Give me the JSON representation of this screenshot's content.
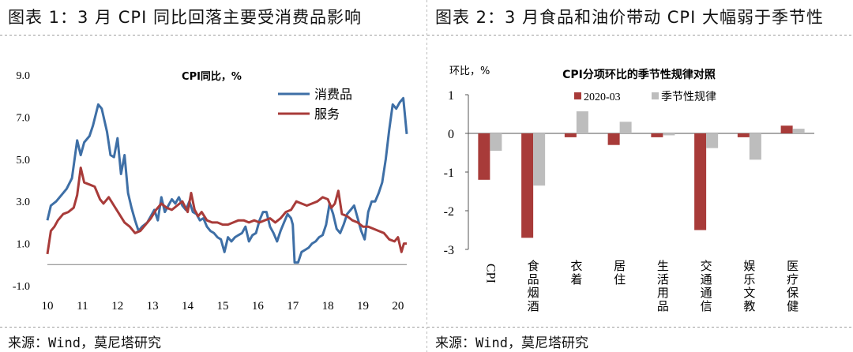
{
  "left": {
    "title": "图表 1：3 月 CPI 同比回落主要受消费品影响",
    "source": "来源：Wind，莫尼塔研究"
  },
  "right": {
    "title": "图表 2：3 月食品和油价带动 CPI 大幅弱于季节性",
    "source": "来源：Wind，莫尼塔研究"
  },
  "colors": {
    "goods": "#3e6fa6",
    "services": "#a83b39",
    "y2020": "#a83b39",
    "seasonal": "#bdbdbd"
  },
  "chart_data": [
    {
      "type": "line",
      "title": "CPI同比，%",
      "ylim": [
        -1.0,
        9.0
      ],
      "yticks": [
        "9.0",
        "7.0",
        "5.0",
        "3.0",
        "1.0",
        "-1.0"
      ],
      "ytick_values": [
        9,
        7,
        5,
        3,
        1,
        -1
      ],
      "x_range": [
        2010,
        2020.25
      ],
      "xticks": [
        "10",
        "11",
        "12",
        "13",
        "14",
        "15",
        "16",
        "17",
        "18",
        "19",
        "20"
      ],
      "xtick_values": [
        2010,
        2011,
        2012,
        2013,
        2014,
        2015,
        2016,
        2017,
        2018,
        2019,
        2020
      ],
      "legend_position": "top-right",
      "series": [
        {
          "name": "消费品",
          "color_key": "goods",
          "points": [
            [
              2010.0,
              2.1
            ],
            [
              2010.1,
              2.8
            ],
            [
              2010.25,
              3.0
            ],
            [
              2010.4,
              3.3
            ],
            [
              2010.55,
              3.6
            ],
            [
              2010.7,
              4.1
            ],
            [
              2010.85,
              5.9
            ],
            [
              2010.95,
              5.2
            ],
            [
              2011.05,
              5.8
            ],
            [
              2011.2,
              6.1
            ],
            [
              2011.3,
              6.6
            ],
            [
              2011.45,
              7.6
            ],
            [
              2011.55,
              7.4
            ],
            [
              2011.7,
              6.3
            ],
            [
              2011.8,
              5.2
            ],
            [
              2011.9,
              5.1
            ],
            [
              2012.0,
              6.0
            ],
            [
              2012.1,
              4.3
            ],
            [
              2012.2,
              5.2
            ],
            [
              2012.3,
              3.4
            ],
            [
              2012.4,
              2.7
            ],
            [
              2012.5,
              2.1
            ],
            [
              2012.6,
              1.6
            ],
            [
              2012.7,
              1.8
            ],
            [
              2012.85,
              2.0
            ],
            [
              2012.95,
              2.3
            ],
            [
              2013.05,
              2.6
            ],
            [
              2013.15,
              2.1
            ],
            [
              2013.25,
              3.2
            ],
            [
              2013.35,
              2.5
            ],
            [
              2013.45,
              2.8
            ],
            [
              2013.55,
              3.1
            ],
            [
              2013.65,
              2.9
            ],
            [
              2013.75,
              3.2
            ],
            [
              2013.85,
              2.8
            ],
            [
              2013.95,
              2.6
            ],
            [
              2014.05,
              3.0
            ],
            [
              2014.15,
              2.5
            ],
            [
              2014.25,
              2.4
            ],
            [
              2014.35,
              2.1
            ],
            [
              2014.45,
              2.2
            ],
            [
              2014.55,
              1.8
            ],
            [
              2014.65,
              1.6
            ],
            [
              2014.75,
              1.5
            ],
            [
              2014.85,
              1.3
            ],
            [
              2014.95,
              1.2
            ],
            [
              2015.05,
              0.6
            ],
            [
              2015.15,
              1.3
            ],
            [
              2015.25,
              1.1
            ],
            [
              2015.35,
              1.3
            ],
            [
              2015.45,
              1.4
            ],
            [
              2015.55,
              1.5
            ],
            [
              2015.65,
              1.8
            ],
            [
              2015.75,
              1.1
            ],
            [
              2015.85,
              1.4
            ],
            [
              2015.95,
              1.5
            ],
            [
              2016.05,
              2.1
            ],
            [
              2016.15,
              2.5
            ],
            [
              2016.25,
              2.5
            ],
            [
              2016.35,
              1.8
            ],
            [
              2016.45,
              1.5
            ],
            [
              2016.55,
              1.1
            ],
            [
              2016.65,
              1.6
            ],
            [
              2016.75,
              2.0
            ],
            [
              2016.85,
              2.4
            ],
            [
              2016.95,
              2.2
            ],
            [
              2017.0,
              1.9
            ],
            [
              2017.05,
              0.1
            ],
            [
              2017.15,
              0.1
            ],
            [
              2017.25,
              0.6
            ],
            [
              2017.35,
              0.7
            ],
            [
              2017.45,
              0.8
            ],
            [
              2017.55,
              1.0
            ],
            [
              2017.65,
              1.1
            ],
            [
              2017.75,
              1.3
            ],
            [
              2017.85,
              1.4
            ],
            [
              2017.95,
              1.9
            ],
            [
              2018.05,
              2.9
            ],
            [
              2018.15,
              2.4
            ],
            [
              2018.25,
              1.7
            ],
            [
              2018.35,
              1.5
            ],
            [
              2018.45,
              1.9
            ],
            [
              2018.55,
              2.4
            ],
            [
              2018.65,
              2.6
            ],
            [
              2018.75,
              2.8
            ],
            [
              2018.85,
              2.2
            ],
            [
              2018.95,
              1.6
            ],
            [
              2019.05,
              1.2
            ],
            [
              2019.15,
              2.5
            ],
            [
              2019.25,
              3.0
            ],
            [
              2019.35,
              3.0
            ],
            [
              2019.45,
              3.4
            ],
            [
              2019.55,
              3.9
            ],
            [
              2019.65,
              5.0
            ],
            [
              2019.75,
              6.4
            ],
            [
              2019.85,
              7.6
            ],
            [
              2019.95,
              7.4
            ],
            [
              2020.05,
              7.7
            ],
            [
              2020.15,
              7.9
            ],
            [
              2020.25,
              6.2
            ]
          ]
        },
        {
          "name": "服务",
          "color_key": "services",
          "points": [
            [
              2010.0,
              0.5
            ],
            [
              2010.1,
              1.6
            ],
            [
              2010.2,
              1.8
            ],
            [
              2010.3,
              2.1
            ],
            [
              2010.45,
              2.4
            ],
            [
              2010.6,
              2.5
            ],
            [
              2010.75,
              2.7
            ],
            [
              2010.85,
              3.3
            ],
            [
              2010.95,
              4.6
            ],
            [
              2011.05,
              3.9
            ],
            [
              2011.2,
              3.8
            ],
            [
              2011.35,
              3.7
            ],
            [
              2011.5,
              3.1
            ],
            [
              2011.6,
              2.9
            ],
            [
              2011.75,
              3.2
            ],
            [
              2011.9,
              2.8
            ],
            [
              2012.05,
              2.4
            ],
            [
              2012.2,
              2.0
            ],
            [
              2012.35,
              1.8
            ],
            [
              2012.5,
              1.5
            ],
            [
              2012.65,
              1.6
            ],
            [
              2012.8,
              1.9
            ],
            [
              2012.95,
              2.2
            ],
            [
              2013.1,
              2.6
            ],
            [
              2013.25,
              2.9
            ],
            [
              2013.4,
              2.7
            ],
            [
              2013.55,
              2.6
            ],
            [
              2013.7,
              2.8
            ],
            [
              2013.85,
              3.0
            ],
            [
              2014.0,
              2.5
            ],
            [
              2014.1,
              3.4
            ],
            [
              2014.2,
              2.6
            ],
            [
              2014.3,
              2.3
            ],
            [
              2014.4,
              2.5
            ],
            [
              2014.55,
              2.1
            ],
            [
              2014.7,
              2.0
            ],
            [
              2014.85,
              2.0
            ],
            [
              2015.0,
              1.9
            ],
            [
              2015.15,
              1.9
            ],
            [
              2015.3,
              2.0
            ],
            [
              2015.45,
              2.1
            ],
            [
              2015.6,
              2.1
            ],
            [
              2015.75,
              2.0
            ],
            [
              2015.9,
              2.1
            ],
            [
              2016.05,
              2.0
            ],
            [
              2016.2,
              2.1
            ],
            [
              2016.35,
              2.2
            ],
            [
              2016.5,
              2.0
            ],
            [
              2016.65,
              2.2
            ],
            [
              2016.8,
              2.5
            ],
            [
              2016.95,
              2.6
            ],
            [
              2017.1,
              3.0
            ],
            [
              2017.25,
              2.9
            ],
            [
              2017.4,
              2.8
            ],
            [
              2017.55,
              2.9
            ],
            [
              2017.7,
              3.0
            ],
            [
              2017.85,
              3.2
            ],
            [
              2018.0,
              3.1
            ],
            [
              2018.1,
              2.7
            ],
            [
              2018.2,
              2.9
            ],
            [
              2018.3,
              3.5
            ],
            [
              2018.4,
              2.4
            ],
            [
              2018.55,
              2.3
            ],
            [
              2018.7,
              2.1
            ],
            [
              2018.85,
              2.0
            ],
            [
              2019.0,
              1.8
            ],
            [
              2019.15,
              1.8
            ],
            [
              2019.3,
              1.7
            ],
            [
              2019.45,
              1.6
            ],
            [
              2019.6,
              1.5
            ],
            [
              2019.75,
              1.2
            ],
            [
              2019.9,
              1.1
            ],
            [
              2020.0,
              1.3
            ],
            [
              2020.1,
              0.6
            ],
            [
              2020.17,
              1.0
            ],
            [
              2020.25,
              1.0
            ]
          ]
        }
      ]
    },
    {
      "type": "bar",
      "title": "CPI分项环比的季节性规律对照",
      "ylabel": "环比，%",
      "ylim": [
        -3,
        1
      ],
      "yticks": [
        "1",
        "0",
        "-1",
        "-2",
        "-3"
      ],
      "ytick_values": [
        1,
        0,
        -1,
        -2,
        -3
      ],
      "legend_position": "top",
      "categories": [
        "CPI",
        "食品烟酒",
        "衣着",
        "居住",
        "生活用品",
        "交通通信",
        "娱乐文教",
        "医疗保健"
      ],
      "series": [
        {
          "name": "2020-03",
          "color_key": "y2020",
          "values": [
            -1.2,
            -2.7,
            -0.1,
            -0.3,
            -0.1,
            -2.5,
            -0.1,
            0.2
          ]
        },
        {
          "name": "季节性规律",
          "color_key": "seasonal",
          "values": [
            -0.45,
            -1.35,
            0.57,
            0.3,
            -0.05,
            -0.38,
            -0.68,
            0.12
          ]
        }
      ]
    }
  ]
}
